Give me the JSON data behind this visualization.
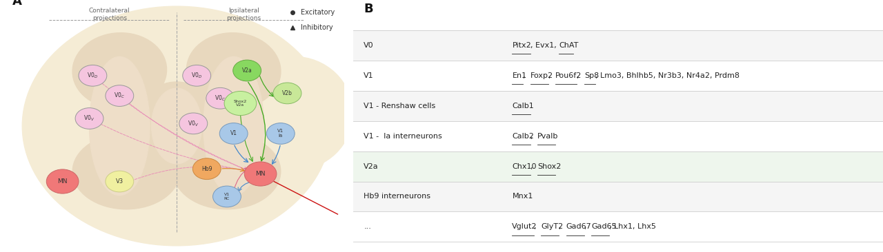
{
  "panel_b_title": "B",
  "panel_a_title": "A",
  "table_rows": [
    {
      "cell_type": "V0",
      "markers": [
        {
          "text": "Pitx2",
          "underline": true
        },
        {
          "text": ", Evx1, ",
          "underline": false
        },
        {
          "text": "ChAT",
          "underline": true
        }
      ],
      "bg_color": "#f5f5f5"
    },
    {
      "cell_type": "V1",
      "markers": [
        {
          "text": "En1",
          "underline": true
        },
        {
          "text": ", ",
          "underline": false
        },
        {
          "text": "Foxp2",
          "underline": true
        },
        {
          "text": ", ",
          "underline": false
        },
        {
          "text": "Pou6f2",
          "underline": true
        },
        {
          "text": ", ",
          "underline": false
        },
        {
          "text": "Sp8",
          "underline": true
        },
        {
          "text": ", Lmo3, Bhlhb5, Nr3b3, Nr4a2, Prdm8",
          "underline": false
        }
      ],
      "bg_color": "#ffffff"
    },
    {
      "cell_type": "V1 - Renshaw cells",
      "markers": [
        {
          "text": "Calb1",
          "underline": true
        }
      ],
      "bg_color": "#f5f5f5"
    },
    {
      "cell_type": "V1 -  Ia interneurons",
      "markers": [
        {
          "text": "Calb2",
          "underline": true
        },
        {
          "text": ", ",
          "underline": false
        },
        {
          "text": "Pvalb",
          "underline": true
        }
      ],
      "bg_color": "#ffffff"
    },
    {
      "cell_type": "V2a",
      "markers": [
        {
          "text": "Chx10",
          "underline": true
        },
        {
          "text": ", ",
          "underline": false
        },
        {
          "text": "Shox2",
          "underline": true
        }
      ],
      "bg_color": "#eef6ed"
    },
    {
      "cell_type": "Hb9 interneurons",
      "markers": [
        {
          "text": "Mnx1",
          "underline": false
        }
      ],
      "bg_color": "#f5f5f5"
    },
    {
      "cell_type": "...",
      "markers": [
        {
          "text": "Vglut2",
          "underline": true
        },
        {
          "text": ", ",
          "underline": false
        },
        {
          "text": "GlyT2",
          "underline": true
        },
        {
          "text": ", ",
          "underline": false
        },
        {
          "text": "Gad67",
          "underline": true
        },
        {
          "text": ", ",
          "underline": false
        },
        {
          "text": "Gad65",
          "underline": true
        },
        {
          "text": ", Lhx1, Lhx5",
          "underline": false
        }
      ],
      "bg_color": "#ffffff"
    }
  ],
  "legend_excitatory": "Excitatory",
  "legend_inhibitory": "Inhibitory",
  "contralateral_label": "Contralateral\nprojections",
  "ipsilateral_label": "Ipsilateral\nprojections"
}
